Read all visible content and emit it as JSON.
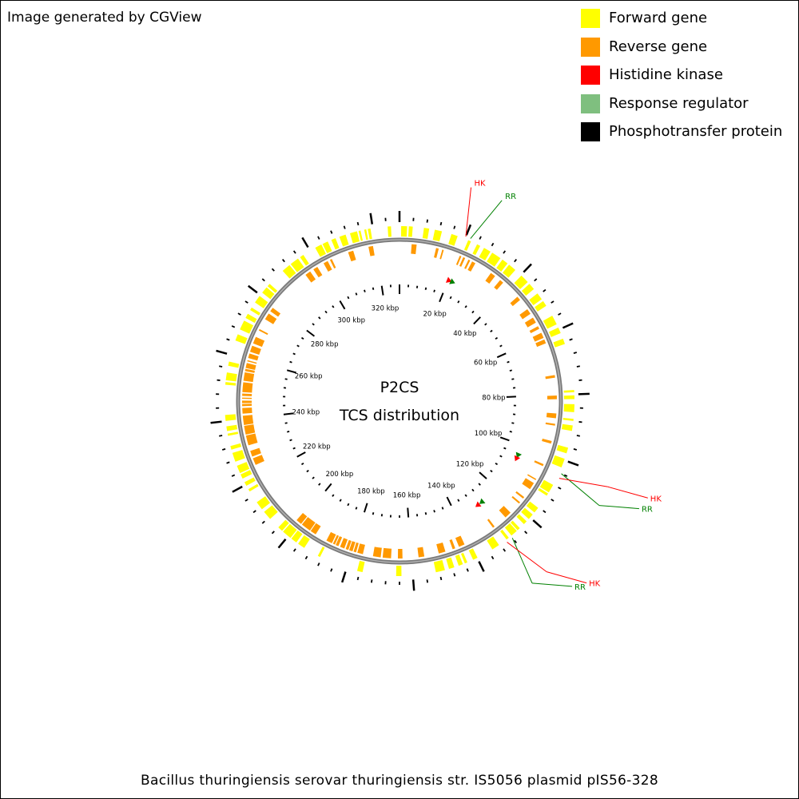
{
  "credit": "Image generated by CGView",
  "legend": [
    {
      "label": "Forward gene",
      "color": "#ffff00"
    },
    {
      "label": "Reverse gene",
      "color": "#ff9900"
    },
    {
      "label": "Histidine kinase",
      "color": "#ff0000"
    },
    {
      "label": "Response regulator",
      "color": "#7fbf7f"
    },
    {
      "label": "Phosphotransfer protein",
      "color": "#000000"
    }
  ],
  "center_title": "P2CS",
  "center_subtitle": "TCS distribution",
  "footer": "Bacillus thuringiensis serovar thuringiensis str. IS5056 plasmid pIS56-328",
  "colors": {
    "forward": "#ffff00",
    "reverse": "#ff9900",
    "hk": "#ff0000",
    "rr": "#008000",
    "backbone": "#7a7a7a"
  },
  "genome": {
    "length_kbp": 328,
    "tick_labels": [
      "20 kbp",
      "40 kbp",
      "60 kbp",
      "80 kbp",
      "100 kbp",
      "120 kbp",
      "140 kbp",
      "160 kbp",
      "180 kbp",
      "200 kbp",
      "220 kbp",
      "240 kbp",
      "260 kbp",
      "280 kbp",
      "300 kbp",
      "320 kbp"
    ],
    "tick_values_kbp": [
      20,
      40,
      60,
      80,
      100,
      120,
      140,
      160,
      180,
      200,
      220,
      240,
      260,
      280,
      300,
      320
    ]
  },
  "features": [
    {
      "type": "HK",
      "label": "HK",
      "position_kbp": 20
    },
    {
      "type": "RR",
      "label": "RR",
      "position_kbp": 21.5
    },
    {
      "type": "RR",
      "label": "RR",
      "position_kbp": 104
    },
    {
      "type": "HK",
      "label": "HK",
      "position_kbp": 105.5
    },
    {
      "type": "RR",
      "label": "RR",
      "position_kbp": 128
    },
    {
      "type": "HK",
      "label": "HK",
      "position_kbp": 130
    }
  ]
}
